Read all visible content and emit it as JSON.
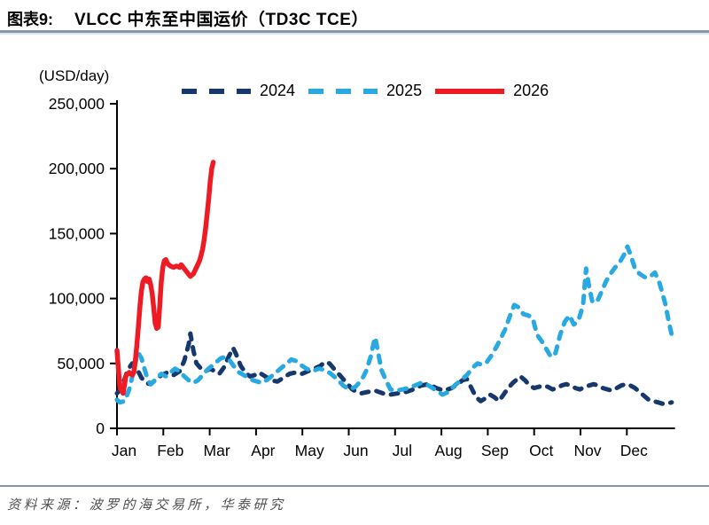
{
  "figure": {
    "label": "图表9:",
    "title": "VLCC 中东至中国运价（TD3C TCE）",
    "unit_label": "(USD/day)",
    "source": "资料来源：波罗的海交易所，华泰研究"
  },
  "colors": {
    "series_2024": "#17386d",
    "series_2025": "#29a9e1",
    "series_2026": "#ed1c24",
    "axis": "#000000",
    "divider": "#8598a9",
    "source_text": "#4f4f4f"
  },
  "chart_data": {
    "type": "line",
    "title": "VLCC 中东至中国运价（TD3C TCE）",
    "xlabel": "",
    "ylabel": "(USD/day)",
    "x_unit": "day-of-year",
    "xlim": [
      1,
      365
    ],
    "ylim": [
      0,
      250000
    ],
    "grid": false,
    "legend_position": "top",
    "y_ticks": [
      0,
      50000,
      100000,
      150000,
      200000,
      250000
    ],
    "y_tick_labels": [
      "0",
      "50,000",
      "100,000",
      "150,000",
      "200,000",
      "250,000"
    ],
    "x_tick_labels": [
      "Jan",
      "Feb",
      "Mar",
      "Apr",
      "May",
      "Jun",
      "Jul",
      "Aug",
      "Sep",
      "Oct",
      "Nov",
      "Dec"
    ],
    "series": [
      {
        "name": "2024",
        "color": "#17386d",
        "style": "dashed",
        "points": [
          [
            1,
            27000
          ],
          [
            4,
            31000
          ],
          [
            8,
            45000
          ],
          [
            11,
            50000
          ],
          [
            14,
            46000
          ],
          [
            17,
            39000
          ],
          [
            20,
            35000
          ],
          [
            23,
            34000
          ],
          [
            26,
            37000
          ],
          [
            30,
            41000
          ],
          [
            34,
            43000
          ],
          [
            38,
            41000
          ],
          [
            42,
            44000
          ],
          [
            45,
            52000
          ],
          [
            48,
            65000
          ],
          [
            49,
            73000
          ],
          [
            51,
            60000
          ],
          [
            53,
            50000
          ],
          [
            56,
            46000
          ],
          [
            59,
            44000
          ],
          [
            62,
            46000
          ],
          [
            65,
            44000
          ],
          [
            68,
            42000
          ],
          [
            71,
            47000
          ],
          [
            74,
            55000
          ],
          [
            77,
            62000
          ],
          [
            79,
            57000
          ],
          [
            82,
            48000
          ],
          [
            85,
            43000
          ],
          [
            88,
            40000
          ],
          [
            91,
            41000
          ],
          [
            94,
            43000
          ],
          [
            98,
            40000
          ],
          [
            102,
            37000
          ],
          [
            106,
            36000
          ],
          [
            110,
            39000
          ],
          [
            114,
            42000
          ],
          [
            118,
            43000
          ],
          [
            122,
            42000
          ],
          [
            126,
            44000
          ],
          [
            130,
            46000
          ],
          [
            134,
            48000
          ],
          [
            137,
            51000
          ],
          [
            140,
            50000
          ],
          [
            143,
            46000
          ],
          [
            146,
            42000
          ],
          [
            149,
            38000
          ],
          [
            152,
            34000
          ],
          [
            155,
            30000
          ],
          [
            158,
            28000
          ],
          [
            161,
            27000
          ],
          [
            165,
            28000
          ],
          [
            170,
            29000
          ],
          [
            175,
            27000
          ],
          [
            180,
            26000
          ],
          [
            185,
            27000
          ],
          [
            190,
            28000
          ],
          [
            195,
            30000
          ],
          [
            200,
            33000
          ],
          [
            205,
            34000
          ],
          [
            210,
            31000
          ],
          [
            215,
            29000
          ],
          [
            220,
            31000
          ],
          [
            224,
            34000
          ],
          [
            227,
            37000
          ],
          [
            230,
            38000
          ],
          [
            233,
            31000
          ],
          [
            236,
            24000
          ],
          [
            239,
            21000
          ],
          [
            242,
            23000
          ],
          [
            245,
            26000
          ],
          [
            248,
            24000
          ],
          [
            251,
            21000
          ],
          [
            254,
            26000
          ],
          [
            257,
            31000
          ],
          [
            260,
            35000
          ],
          [
            263,
            38000
          ],
          [
            265,
            40000
          ],
          [
            268,
            37000
          ],
          [
            271,
            33000
          ],
          [
            274,
            31000
          ],
          [
            277,
            32000
          ],
          [
            280,
            33000
          ],
          [
            283,
            32000
          ],
          [
            286,
            30000
          ],
          [
            289,
            31000
          ],
          [
            292,
            33000
          ],
          [
            295,
            34000
          ],
          [
            298,
            33000
          ],
          [
            301,
            31000
          ],
          [
            304,
            30000
          ],
          [
            307,
            32000
          ],
          [
            310,
            33000
          ],
          [
            313,
            34000
          ],
          [
            316,
            33000
          ],
          [
            319,
            31000
          ],
          [
            322,
            30000
          ],
          [
            325,
            29000
          ],
          [
            328,
            31000
          ],
          [
            331,
            33000
          ],
          [
            334,
            34000
          ],
          [
            337,
            33000
          ],
          [
            340,
            31000
          ],
          [
            343,
            28000
          ],
          [
            346,
            25000
          ],
          [
            349,
            22000
          ],
          [
            352,
            21000
          ],
          [
            355,
            20000
          ],
          [
            358,
            19000
          ],
          [
            361,
            19000
          ],
          [
            364,
            20000
          ]
        ]
      },
      {
        "name": "2025",
        "color": "#29a9e1",
        "style": "dashed",
        "points": [
          [
            1,
            22000
          ],
          [
            3,
            20000
          ],
          [
            6,
            21000
          ],
          [
            9,
            30000
          ],
          [
            12,
            45000
          ],
          [
            14,
            55000
          ],
          [
            15,
            58000
          ],
          [
            17,
            54000
          ],
          [
            19,
            46000
          ],
          [
            21,
            38000
          ],
          [
            23,
            34000
          ],
          [
            25,
            36000
          ],
          [
            27,
            39000
          ],
          [
            30,
            42000
          ],
          [
            33,
            40000
          ],
          [
            36,
            43000
          ],
          [
            39,
            46000
          ],
          [
            42,
            44000
          ],
          [
            45,
            40000
          ],
          [
            48,
            37000
          ],
          [
            51,
            35000
          ],
          [
            54,
            37000
          ],
          [
            57,
            41000
          ],
          [
            60,
            45000
          ],
          [
            63,
            48000
          ],
          [
            66,
            51000
          ],
          [
            69,
            54000
          ],
          [
            72,
            55000
          ],
          [
            75,
            52000
          ],
          [
            78,
            47000
          ],
          [
            81,
            43000
          ],
          [
            84,
            41000
          ],
          [
            87,
            39000
          ],
          [
            90,
            37000
          ],
          [
            93,
            36000
          ],
          [
            96,
            35000
          ],
          [
            100,
            38000
          ],
          [
            104,
            42000
          ],
          [
            108,
            46000
          ],
          [
            112,
            50000
          ],
          [
            115,
            53000
          ],
          [
            118,
            52000
          ],
          [
            121,
            49000
          ],
          [
            125,
            46000
          ],
          [
            129,
            44000
          ],
          [
            133,
            46000
          ],
          [
            137,
            45000
          ],
          [
            141,
            42000
          ],
          [
            145,
            38000
          ],
          [
            149,
            33000
          ],
          [
            153,
            30000
          ],
          [
            157,
            32000
          ],
          [
            161,
            37000
          ],
          [
            164,
            44000
          ],
          [
            167,
            55000
          ],
          [
            169,
            66000
          ],
          [
            170,
            70000
          ],
          [
            172,
            58000
          ],
          [
            174,
            45000
          ],
          [
            177,
            37000
          ],
          [
            180,
            30000
          ],
          [
            184,
            29000
          ],
          [
            188,
            30000
          ],
          [
            192,
            31000
          ],
          [
            196,
            33000
          ],
          [
            200,
            35000
          ],
          [
            205,
            33000
          ],
          [
            210,
            29000
          ],
          [
            214,
            26000
          ],
          [
            218,
            28000
          ],
          [
            222,
            33000
          ],
          [
            226,
            37000
          ],
          [
            230,
            41000
          ],
          [
            234,
            47000
          ],
          [
            237,
            50000
          ],
          [
            240,
            49000
          ],
          [
            243,
            51000
          ],
          [
            246,
            56000
          ],
          [
            249,
            62000
          ],
          [
            252,
            69000
          ],
          [
            255,
            76000
          ],
          [
            258,
            86000
          ],
          [
            261,
            95000
          ],
          [
            264,
            93000
          ],
          [
            267,
            88000
          ],
          [
            270,
            87000
          ],
          [
            273,
            85000
          ],
          [
            276,
            72000
          ],
          [
            279,
            67000
          ],
          [
            282,
            61000
          ],
          [
            285,
            55000
          ],
          [
            288,
            58000
          ],
          [
            291,
            72000
          ],
          [
            294,
            82000
          ],
          [
            297,
            87000
          ],
          [
            300,
            80000
          ],
          [
            303,
            83000
          ],
          [
            306,
            95000
          ],
          [
            308,
            123000
          ],
          [
            310,
            109000
          ],
          [
            312,
            98000
          ],
          [
            315,
            97000
          ],
          [
            318,
            105000
          ],
          [
            321,
            113000
          ],
          [
            324,
            119000
          ],
          [
            327,
            124000
          ],
          [
            330,
            128000
          ],
          [
            333,
            134000
          ],
          [
            335,
            140000
          ],
          [
            337,
            134000
          ],
          [
            340,
            123000
          ],
          [
            343,
            119000
          ],
          [
            347,
            116000
          ],
          [
            350,
            117000
          ],
          [
            353,
            120000
          ],
          [
            356,
            112000
          ],
          [
            358,
            104000
          ],
          [
            360,
            95000
          ],
          [
            362,
            83000
          ],
          [
            364,
            72000
          ]
        ]
      },
      {
        "name": "2026",
        "color": "#ed1c24",
        "style": "solid",
        "points": [
          [
            1,
            60000
          ],
          [
            2,
            45000
          ],
          [
            3,
            31000
          ],
          [
            5,
            27000
          ],
          [
            6,
            34000
          ],
          [
            7,
            41000
          ],
          [
            9,
            43000
          ],
          [
            11,
            41000
          ],
          [
            12,
            43000
          ],
          [
            13,
            52000
          ],
          [
            14,
            64000
          ],
          [
            15,
            78000
          ],
          [
            16,
            94000
          ],
          [
            17,
            106000
          ],
          [
            18,
            113000
          ],
          [
            19,
            115000
          ],
          [
            20,
            116000
          ],
          [
            21,
            113000
          ],
          [
            22,
            115000
          ],
          [
            23,
            111000
          ],
          [
            24,
            104000
          ],
          [
            25,
            93000
          ],
          [
            26,
            81000
          ],
          [
            27,
            77000
          ],
          [
            28,
            78000
          ],
          [
            29,
            95000
          ],
          [
            30,
            113000
          ],
          [
            31,
            124000
          ],
          [
            32,
            129000
          ],
          [
            33,
            130000
          ],
          [
            34,
            127000
          ],
          [
            36,
            125000
          ],
          [
            38,
            124000
          ],
          [
            40,
            125000
          ],
          [
            42,
            124000
          ],
          [
            43,
            126000
          ],
          [
            45,
            123000
          ],
          [
            47,
            120000
          ],
          [
            49,
            117000
          ],
          [
            51,
            119000
          ],
          [
            53,
            124000
          ],
          [
            55,
            129000
          ],
          [
            56,
            133000
          ],
          [
            57,
            138000
          ],
          [
            58,
            145000
          ],
          [
            59,
            154000
          ],
          [
            60,
            165000
          ],
          [
            61,
            177000
          ],
          [
            62,
            190000
          ],
          [
            63,
            200000
          ],
          [
            64,
            205000
          ]
        ]
      }
    ]
  }
}
